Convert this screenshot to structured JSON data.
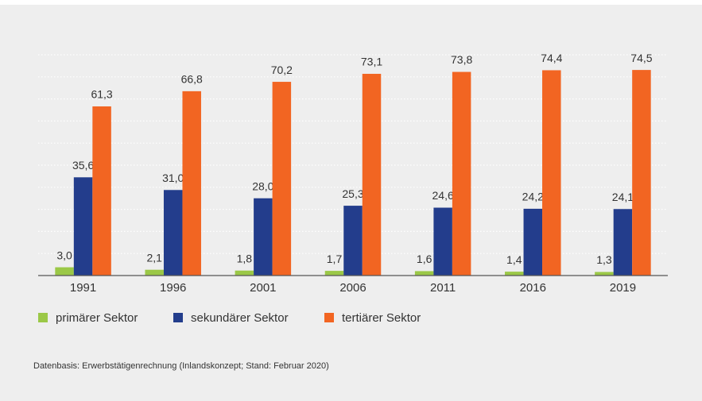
{
  "chart_data": {
    "type": "bar",
    "categories": [
      "1991",
      "1996",
      "2001",
      "2006",
      "2011",
      "2016",
      "2019"
    ],
    "series": [
      {
        "name": "primärer Sektor",
        "color": "#9bc847",
        "values": [
          3.0,
          2.1,
          1.8,
          1.7,
          1.6,
          1.4,
          1.3
        ],
        "value_labels": [
          "3,0",
          "2,1",
          "1,8",
          "1,7",
          "1,6",
          "1,4",
          "1,3"
        ]
      },
      {
        "name": "sekundärer Sektor",
        "color": "#233d8c",
        "values": [
          35.6,
          31.0,
          28.0,
          25.3,
          24.6,
          24.2,
          24.1
        ],
        "value_labels": [
          "35,6",
          "31,0",
          "28,0",
          "25,3",
          "24,6",
          "24,2",
          "24,1"
        ]
      },
      {
        "name": "tertiärer Sektor",
        "color": "#f26522",
        "values": [
          61.3,
          66.8,
          70.2,
          73.1,
          73.8,
          74.4,
          74.5
        ],
        "value_labels": [
          "61,3",
          "66,8",
          "70,2",
          "73,1",
          "73,8",
          "74,4",
          "74,5"
        ]
      }
    ],
    "ylim": [
      0,
      80
    ],
    "yticks": [
      0,
      8,
      16,
      24,
      32,
      40,
      48,
      56,
      64,
      72,
      80
    ],
    "grid": true,
    "legend": "bottom-left",
    "note": "Datenbasis: Erwerbstätigenrechnung (Inlandskonzept; Stand: Februar 2020)"
  }
}
